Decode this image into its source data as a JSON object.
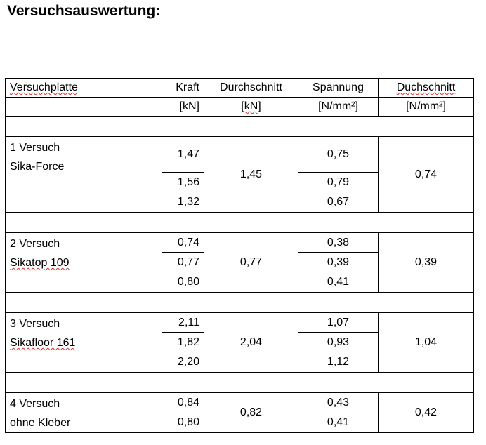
{
  "title": "Versuchsauswertung:",
  "headers": {
    "col1": "Versuchplatte",
    "col2": "Kraft",
    "col3": "Durchschnitt",
    "col4": "Spannung",
    "col5": "Duchschnitt"
  },
  "units": {
    "col2": "[kN]",
    "col3": "[kN]",
    "col4": "[N/mm²]",
    "col5": "[N/mm²]"
  },
  "groups": [
    {
      "line1": "1 Versuch",
      "line2": "Sika-Force",
      "kraft": [
        "1,47",
        "1,56",
        "1,32"
      ],
      "kraft_avg": "1,45",
      "spannung": [
        "0,75",
        "0,79",
        "0,67"
      ],
      "spannung_avg": "0,74"
    },
    {
      "line1": "2 Versuch",
      "line2": "Sikatop 109",
      "kraft": [
        "0,74",
        "0,77",
        "0,80"
      ],
      "kraft_avg": "0,77",
      "spannung": [
        "0,38",
        "0,39",
        "0,41"
      ],
      "spannung_avg": "0,39"
    },
    {
      "line1": "3 Versuch",
      "line2": "Sikafloor 161",
      "kraft": [
        "2,11",
        "1,82",
        "2,20"
      ],
      "kraft_avg": "2,04",
      "spannung": [
        "1,07",
        "0,93",
        "1,12"
      ],
      "spannung_avg": "1,04"
    },
    {
      "line1": "4 Versuch",
      "line2": "ohne Kleber",
      "kraft": [
        "0,84",
        "0,80"
      ],
      "kraft_avg": "0,82",
      "spannung": [
        "0,43",
        "0,41"
      ],
      "spannung_avg": "0,42"
    }
  ]
}
